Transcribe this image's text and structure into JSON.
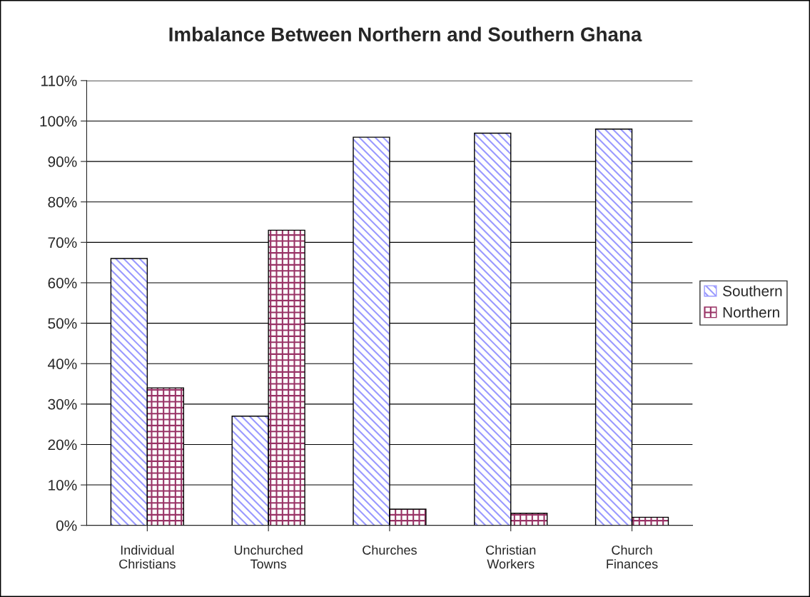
{
  "chart_data": {
    "type": "bar",
    "title": "Imbalance Between Northern and Southern Ghana",
    "categories": [
      "Individual\nChristians",
      "Unchurched\nTowns",
      "Churches",
      "Christian\nWorkers",
      "Church\nFinances"
    ],
    "series": [
      {
        "name": "Southern",
        "color": "#9999ff",
        "values": [
          66,
          27,
          96,
          97,
          98
        ]
      },
      {
        "name": "Northern",
        "color": "#993366",
        "values": [
          34,
          73,
          4,
          3,
          2
        ]
      }
    ],
    "ylim": [
      0,
      110
    ],
    "yticks": [
      {
        "value": 0,
        "label": "0%"
      },
      {
        "value": 10,
        "label": "10%"
      },
      {
        "value": 20,
        "label": "20%"
      },
      {
        "value": 30,
        "label": "30%"
      },
      {
        "value": 40,
        "label": "40%"
      },
      {
        "value": 50,
        "label": "50%"
      },
      {
        "value": 60,
        "label": "60%"
      },
      {
        "value": 70,
        "label": "70%"
      },
      {
        "value": 80,
        "label": "80%"
      },
      {
        "value": 90,
        "label": "90%"
      },
      {
        "value": 100,
        "label": "100%"
      },
      {
        "value": 110,
        "label": "110%"
      }
    ],
    "grid": "y",
    "legend": "right"
  }
}
